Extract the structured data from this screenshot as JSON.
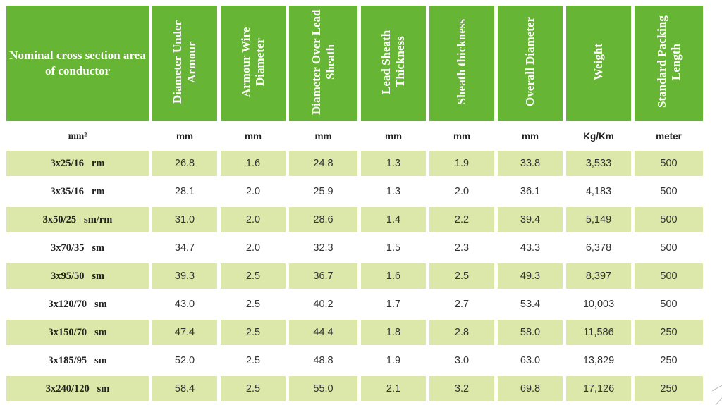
{
  "table": {
    "headers": [
      "Nominal cross section area of conductor",
      "Diameter Under Armour",
      "Armour Wire Diameter",
      "Diameter Over Lead Sheath",
      "Lead Sheath Thickness",
      "Sheath thickness",
      "Overall Diameter",
      "Weight",
      "Standard Packing Length"
    ],
    "units": [
      "mm²",
      "mm",
      "mm",
      "mm",
      "mm",
      "mm",
      "mm",
      "Kg/Km",
      "meter"
    ],
    "rows": [
      [
        "3x25/16   rm",
        "26.8",
        "1.6",
        "24.8",
        "1.3",
        "1.9",
        "33.8",
        "3,533",
        "500"
      ],
      [
        "3x35/16   rm",
        "28.1",
        "2.0",
        "25.9",
        "1.3",
        "2.0",
        "36.1",
        "4,183",
        "500"
      ],
      [
        "3x50/25   sm/rm",
        "31.0",
        "2.0",
        "28.6",
        "1.4",
        "2.2",
        "39.4",
        "5,149",
        "500"
      ],
      [
        "3x70/35   sm",
        "34.7",
        "2.0",
        "32.3",
        "1.5",
        "2.3",
        "43.3",
        "6,378",
        "500"
      ],
      [
        "3x95/50   sm",
        "39.3",
        "2.5",
        "36.7",
        "1.6",
        "2.5",
        "49.3",
        "8,397",
        "500"
      ],
      [
        "3x120/70   sm",
        "43.0",
        "2.5",
        "40.2",
        "1.7",
        "2.7",
        "53.4",
        "10,003",
        "500"
      ],
      [
        "3x150/70   sm",
        "47.4",
        "2.5",
        "44.4",
        "1.8",
        "2.8",
        "58.0",
        "11,586",
        "250"
      ],
      [
        "3x185/95   sm",
        "52.0",
        "2.5",
        "48.8",
        "1.9",
        "3.0",
        "63.0",
        "13,829",
        "250"
      ],
      [
        "3x240/120   sm",
        "58.4",
        "2.5",
        "55.0",
        "2.1",
        "3.2",
        "69.8",
        "17,126",
        "250"
      ]
    ]
  },
  "colors": {
    "header_green": "#67b534",
    "row_shade": "#dbe8a9"
  }
}
